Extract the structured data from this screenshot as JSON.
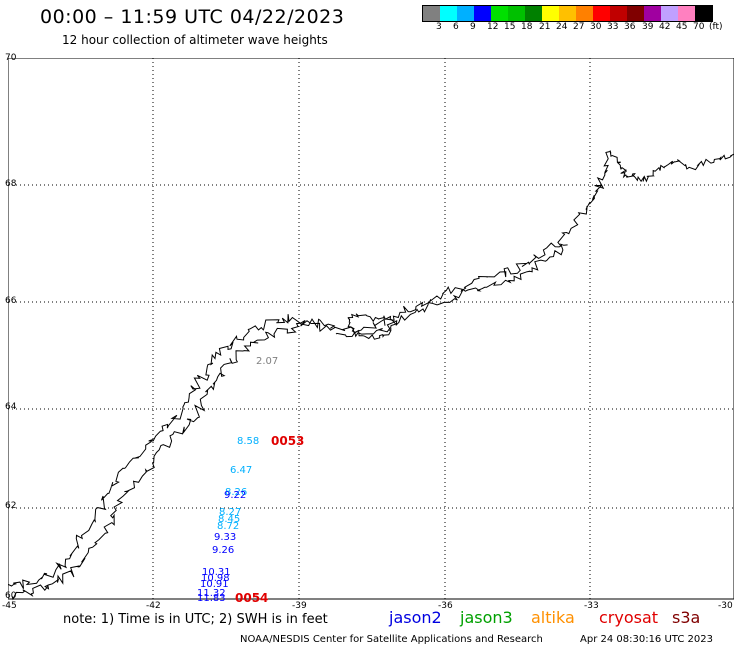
{
  "header": {
    "title": "00:00 – 11:59 UTC 04/22/2023",
    "subtitle": "12 hour collection of altimeter wave heights"
  },
  "legend": {
    "colors": [
      "#808080",
      "#00ffff",
      "#00b0ff",
      "#0000ff",
      "#00e000",
      "#00c000",
      "#008000",
      "#ffff00",
      "#ffc000",
      "#ff8000",
      "#ff0000",
      "#c00000",
      "#800000",
      "#a000a0",
      "#c0a0ff",
      "#ff80c0",
      "#000000"
    ],
    "tick_labels": [
      "3",
      "6",
      "9",
      "12",
      "15",
      "18",
      "21",
      "24",
      "27",
      "30",
      "33",
      "36",
      "39",
      "42",
      "45",
      "70",
      "(ft)"
    ]
  },
  "map": {
    "lat_labels": [
      "70",
      "68",
      "66",
      "64",
      "62",
      "60"
    ],
    "lon_labels": [
      "-45",
      "-42",
      "-39",
      "-36",
      "-33",
      "-30"
    ],
    "wave_heights": [
      {
        "value": "2.07",
        "color": "#808080"
      },
      {
        "value": "8.58",
        "color": "#00b0ff"
      },
      {
        "value": "6.47",
        "color": "#00b0ff"
      },
      {
        "value": "8.26",
        "color": "#00b0ff"
      },
      {
        "value": "9.22",
        "color": "#0000ff"
      },
      {
        "value": "8.27",
        "color": "#00b0ff"
      },
      {
        "value": "8.45",
        "color": "#00b0ff"
      },
      {
        "value": "8.72",
        "color": "#00b0ff"
      },
      {
        "value": "9.33",
        "color": "#0000ff"
      },
      {
        "value": "9.26",
        "color": "#0000ff"
      },
      {
        "value": "10.31",
        "color": "#0000ff"
      },
      {
        "value": "10.98",
        "color": "#0000ff"
      },
      {
        "value": "10.91",
        "color": "#0000ff"
      },
      {
        "value": "11.32",
        "color": "#0000ff"
      },
      {
        "value": "11.83",
        "color": "#0000ff"
      }
    ],
    "pass_times": [
      "0053",
      "0054"
    ]
  },
  "footer": {
    "note": "note:  1) Time is in UTC;  2) SWH is in feet",
    "satellites": [
      {
        "name": "jason2",
        "color": "#0000e0"
      },
      {
        "name": "jason3",
        "color": "#00a000"
      },
      {
        "name": "altika",
        "color": "#ff9000"
      },
      {
        "name": "cryosat",
        "color": "#e00000"
      },
      {
        "name": "s3a",
        "color": "#800000"
      }
    ],
    "credit": "NOAA/NESDIS Center for Satellite Applications and Research",
    "timestamp": "Apr 24 08:30:16 UTC 2023"
  }
}
